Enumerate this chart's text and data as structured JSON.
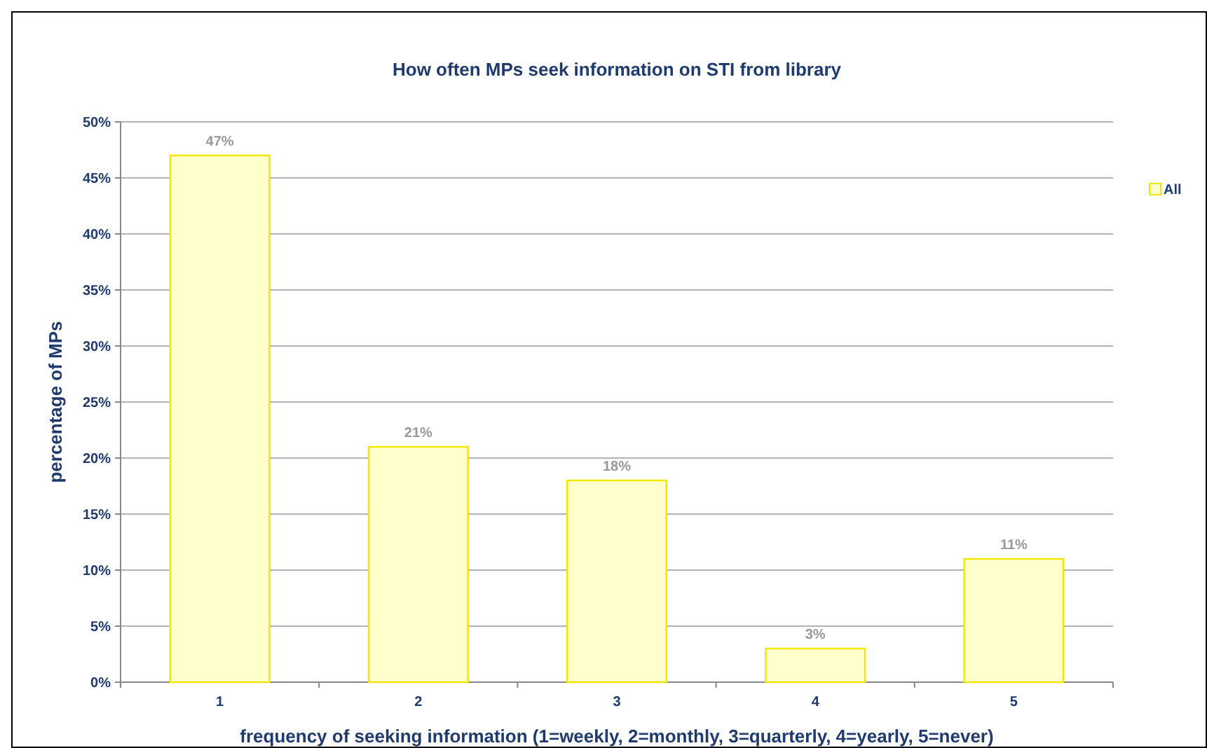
{
  "chart_data": {
    "type": "bar",
    "title": "How often MPs seek information on STI from library",
    "xlabel": "frequency of seeking information (1=weekly, 2=monthly, 3=quarterly, 4=yearly, 5=never)",
    "ylabel": "percentage of MPs",
    "categories": [
      "1",
      "2",
      "3",
      "4",
      "5"
    ],
    "series": [
      {
        "name": "All",
        "color": "#ffffcc",
        "values": [
          47,
          21,
          18,
          3,
          11
        ],
        "value_labels": [
          "47%",
          "21%",
          "18%",
          "3%",
          "11%"
        ]
      }
    ],
    "ylim": [
      0,
      50
    ],
    "yticks": [
      {
        "value": 0,
        "label": "0%"
      },
      {
        "value": 5,
        "label": "5%"
      },
      {
        "value": 10,
        "label": "10%"
      },
      {
        "value": 15,
        "label": "15%"
      },
      {
        "value": 20,
        "label": "20%"
      },
      {
        "value": 25,
        "label": "25%"
      },
      {
        "value": 30,
        "label": "30%"
      },
      {
        "value": 35,
        "label": "35%"
      },
      {
        "value": 40,
        "label": "40%"
      },
      {
        "value": 45,
        "label": "45%"
      },
      {
        "value": 50,
        "label": "50%"
      }
    ],
    "grid": "y",
    "legend": "right"
  }
}
